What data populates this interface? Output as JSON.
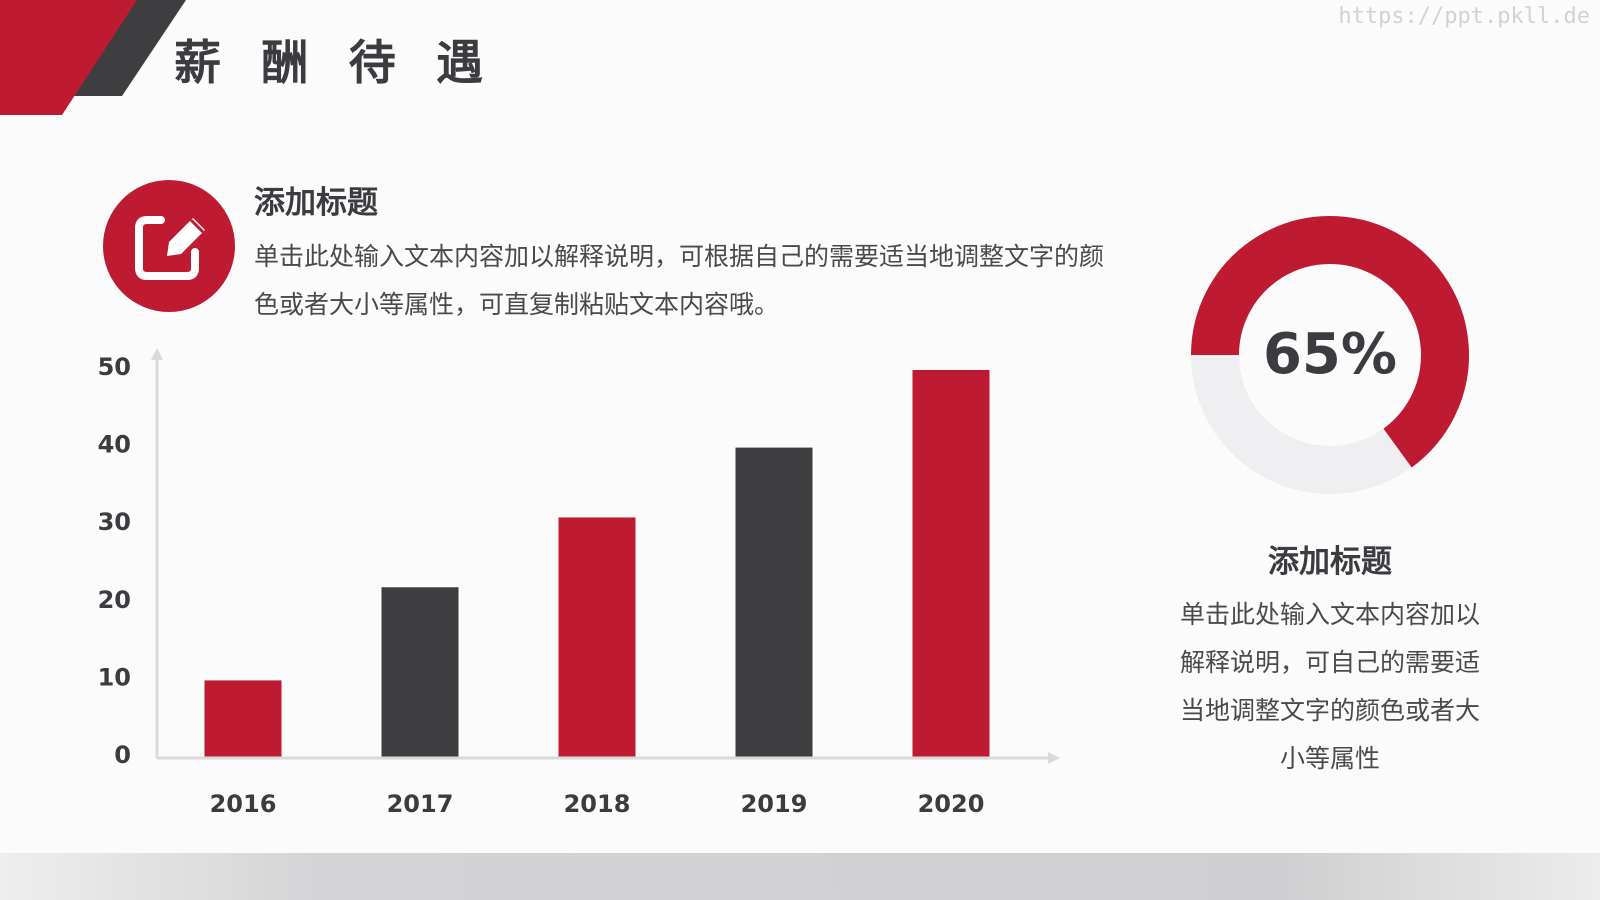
{
  "slide": {
    "title": "薪 酬 待 遇",
    "watermark": "https://ppt.pkll.de"
  },
  "intro": {
    "icon": "edit-icon",
    "title": "添加标题",
    "body": "单击此处输入文本内容加以解释说明，可根据自己的需要适当地调整文字的颜色或者大小等属性，可直复制粘贴文本内容哦。"
  },
  "donut": {
    "label": "65%",
    "percent": 65
  },
  "side": {
    "title": "添加标题",
    "body": "单击此处输入文本内容加以解释说明，可自己的需要适当地调整文字的颜色或者大小等属性"
  },
  "colors": {
    "red": "#be1a31",
    "dark": "#3e3d40",
    "grey_track": "#efeef0",
    "axis": "#dadadc"
  },
  "chart_data": {
    "type": "bar",
    "categories": [
      "2016",
      "2017",
      "2018",
      "2019",
      "2020"
    ],
    "values": [
      10,
      22,
      31,
      40,
      50
    ],
    "bar_colors": [
      "#be1a31",
      "#3e3d40",
      "#be1a31",
      "#3e3d40",
      "#be1a31"
    ],
    "yticks": [
      0,
      10,
      20,
      30,
      40,
      50
    ],
    "ylim": [
      0,
      50
    ],
    "title": "",
    "xlabel": "",
    "ylabel": "",
    "grid": false,
    "legend": "none"
  }
}
